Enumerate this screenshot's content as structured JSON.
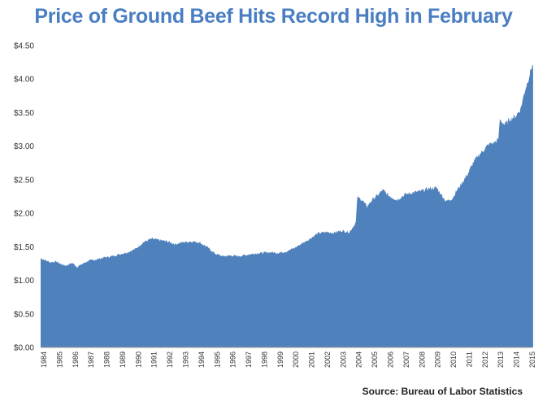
{
  "chart_data": {
    "type": "area",
    "title": "Price of Ground Beef Hits Record High in February",
    "source": "Source: Bureau of Labor Statistics",
    "xlabel": "",
    "ylabel": "",
    "ylim": [
      0,
      4.5
    ],
    "xlim": [
      1984,
      2015
    ],
    "y_ticks": [
      "$0.00",
      "$0.50",
      "$1.00",
      "$1.50",
      "$2.00",
      "$2.50",
      "$3.00",
      "$3.50",
      "$4.00",
      "$4.50"
    ],
    "x_ticks": [
      "1984",
      "1985",
      "1986",
      "1987",
      "1988",
      "1989",
      "1990",
      "1991",
      "1992",
      "1993",
      "1994",
      "1995",
      "1996",
      "1997",
      "1998",
      "1999",
      "2000",
      "2001",
      "2002",
      "2003",
      "2004",
      "2005",
      "2006",
      "2007",
      "2008",
      "2009",
      "2010",
      "2011",
      "2012",
      "2013",
      "2014",
      "2015"
    ],
    "grid": false,
    "series": [
      {
        "name": "",
        "x": [
          1984.0,
          1984.3,
          1984.6,
          1985.0,
          1985.3,
          1985.6,
          1986.0,
          1986.3,
          1986.6,
          1987.0,
          1987.5,
          1988.0,
          1988.5,
          1989.0,
          1989.5,
          1990.0,
          1990.5,
          1991.0,
          1991.5,
          1992.0,
          1992.5,
          1993.0,
          1993.5,
          1994.0,
          1994.5,
          1995.0,
          1995.5,
          1996.0,
          1996.5,
          1997.0,
          1997.5,
          1998.0,
          1998.5,
          1999.0,
          1999.5,
          2000.0,
          2000.5,
          2001.0,
          2001.5,
          2002.0,
          2002.5,
          2003.0,
          2003.5,
          2003.9,
          2004.0,
          2004.3,
          2004.6,
          2005.0,
          2005.3,
          2005.6,
          2006.0,
          2006.5,
          2007.0,
          2007.5,
          2008.0,
          2008.5,
          2009.0,
          2009.3,
          2009.6,
          2010.0,
          2010.3,
          2010.6,
          2011.0,
          2011.3,
          2011.6,
          2012.0,
          2012.3,
          2012.6,
          2012.9,
          2013.0,
          2013.3,
          2013.6,
          2014.0,
          2014.3,
          2014.6,
          2014.8,
          2015.0,
          2015.1
        ],
        "values": [
          1.33,
          1.3,
          1.27,
          1.28,
          1.24,
          1.22,
          1.26,
          1.2,
          1.24,
          1.29,
          1.31,
          1.34,
          1.36,
          1.39,
          1.42,
          1.47,
          1.57,
          1.62,
          1.6,
          1.58,
          1.54,
          1.57,
          1.58,
          1.57,
          1.5,
          1.4,
          1.36,
          1.37,
          1.36,
          1.38,
          1.4,
          1.41,
          1.42,
          1.41,
          1.43,
          1.48,
          1.55,
          1.62,
          1.7,
          1.72,
          1.71,
          1.74,
          1.72,
          1.86,
          2.24,
          2.2,
          2.1,
          2.22,
          2.27,
          2.35,
          2.26,
          2.2,
          2.28,
          2.31,
          2.33,
          2.37,
          2.38,
          2.28,
          2.18,
          2.22,
          2.35,
          2.45,
          2.6,
          2.75,
          2.85,
          2.95,
          3.03,
          3.05,
          3.1,
          3.4,
          3.32,
          3.4,
          3.45,
          3.55,
          3.85,
          4.0,
          4.18,
          4.22
        ],
        "color": "#4f81bd"
      }
    ],
    "colors": {
      "title": "#4a7ec2",
      "area": "#4f81bd"
    }
  }
}
